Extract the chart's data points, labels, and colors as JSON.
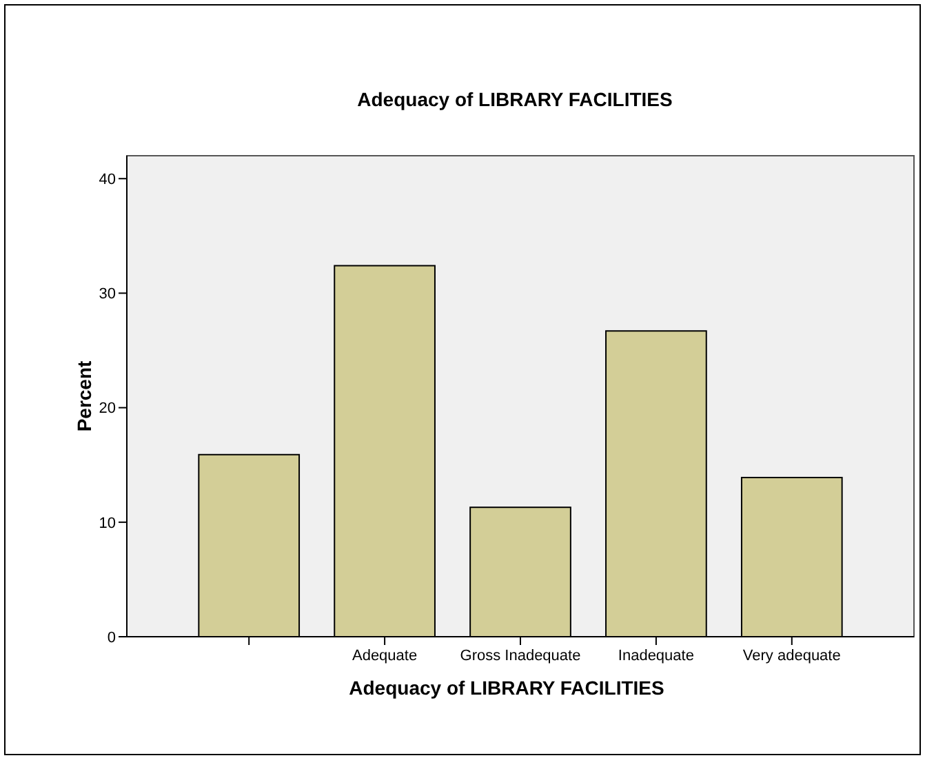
{
  "chart_data": {
    "type": "bar",
    "title": "Adequacy of LIBRARY FACILITIES",
    "xlabel": "Adequacy of LIBRARY FACILITIES",
    "ylabel": "Percent",
    "categories": [
      null,
      "Adequate",
      "Gross Inadequate",
      "Inadequate",
      "Very adequate"
    ],
    "values": [
      15.9,
      32.4,
      11.3,
      26.7,
      13.9
    ],
    "color": "#d3ce97",
    "ylim": [
      0,
      42
    ],
    "yticks": [
      0,
      10,
      20,
      30,
      40
    ],
    "grid": false
  }
}
